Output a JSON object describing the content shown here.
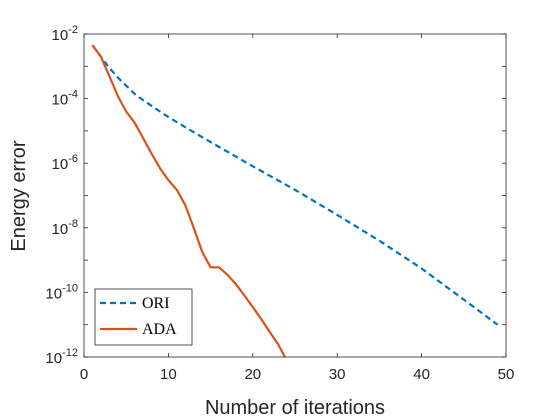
{
  "chart_data": {
    "type": "line",
    "title": "",
    "xlabel": "Number of iterations",
    "ylabel": "Energy error",
    "xlim": [
      0,
      50
    ],
    "ylim": [
      1e-12,
      0.01
    ],
    "y_scale": "log",
    "grid": false,
    "legend_position": "bottom-left",
    "x_ticks": [
      {
        "value": 0,
        "label": "0"
      },
      {
        "value": 10,
        "label": "10"
      },
      {
        "value": 20,
        "label": "20"
      },
      {
        "value": 30,
        "label": "30"
      },
      {
        "value": 40,
        "label": "40"
      },
      {
        "value": 50,
        "label": "50"
      }
    ],
    "y_ticks": [
      {
        "exp": -12,
        "label": "-12"
      },
      {
        "exp": -10,
        "label": "-10"
      },
      {
        "exp": -8,
        "label": "-8"
      },
      {
        "exp": -6,
        "label": "-6"
      },
      {
        "exp": -4,
        "label": "-4"
      },
      {
        "exp": -2,
        "label": "-2"
      }
    ],
    "y_tick_base": "10",
    "series": [
      {
        "name": "ORI",
        "color": "#0072BD",
        "dash": "dashed",
        "x": [
          1,
          2,
          3,
          4,
          5,
          6,
          7,
          8,
          9,
          10,
          12,
          15,
          20,
          25,
          30,
          35,
          40,
          45,
          49
        ],
        "y": [
          0.0045,
          0.002,
          0.0009,
          0.00045,
          0.00025,
          0.00014,
          9e-05,
          6e-05,
          4e-05,
          2.7e-05,
          1.3e-05,
          4.5e-06,
          8e-07,
          1.5e-07,
          2.5e-08,
          4e-09,
          5.5e-10,
          6e-11,
          1e-11
        ]
      },
      {
        "name": "ADA",
        "color": "#D95319",
        "dash": "solid",
        "x": [
          1,
          2,
          3,
          4,
          5,
          6,
          7,
          8,
          9,
          10,
          11,
          12,
          13,
          14,
          15,
          16,
          17,
          18,
          19,
          20,
          21,
          22,
          23,
          23.8
        ],
        "y": [
          0.0045,
          0.002,
          0.0005,
          0.00012,
          4e-05,
          1.8e-05,
          6e-06,
          2e-06,
          7e-07,
          3e-07,
          1.5e-07,
          5e-08,
          1e-08,
          1.8e-09,
          6e-10,
          6e-10,
          3.5e-10,
          1.8e-10,
          8e-11,
          3.5e-11,
          1.5e-11,
          6e-12,
          2.5e-12,
          1e-12
        ]
      }
    ]
  }
}
